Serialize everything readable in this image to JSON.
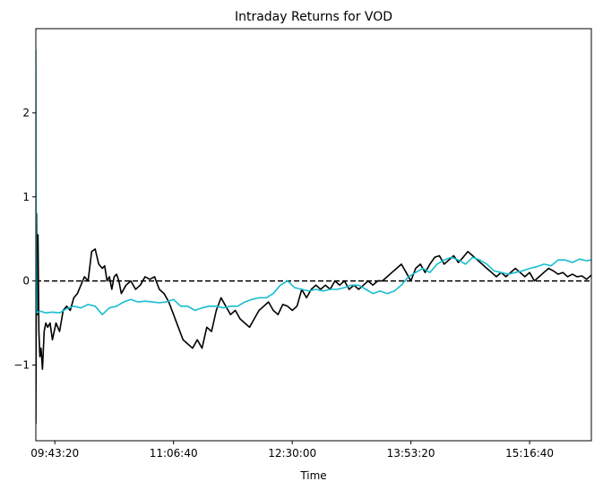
{
  "chart_data": {
    "type": "line",
    "title": "Intraday Returns for VOD",
    "xlabel": "Time",
    "ylabel": "",
    "x_ticks": [
      "09:43:20",
      "11:06:40",
      "12:30:00",
      "13:53:20",
      "15:16:40"
    ],
    "x_tick_seconds": [
      35000,
      40000,
      45000,
      50000,
      55000
    ],
    "xlim_seconds": [
      34200,
      57600
    ],
    "ylim": [
      -1.9,
      3.0
    ],
    "y_ticks": [
      -1,
      0,
      1,
      2
    ],
    "grid": false,
    "reference_line": {
      "y": 0,
      "style": "dashed",
      "color": "#000000"
    },
    "series": [
      {
        "color": "#000000",
        "x_seconds": [
          34200,
          34230,
          34260,
          34290,
          34330,
          34370,
          34420,
          34480,
          34550,
          34620,
          34700,
          34800,
          34900,
          35050,
          35200,
          35350,
          35500,
          35650,
          35800,
          35950,
          36100,
          36250,
          36400,
          36550,
          36700,
          36850,
          37000,
          37100,
          37200,
          37300,
          37400,
          37500,
          37600,
          37700,
          37800,
          38000,
          38200,
          38400,
          38600,
          38800,
          39000,
          39200,
          39400,
          39600,
          39800,
          40000,
          40200,
          40400,
          40600,
          40800,
          41000,
          41200,
          41400,
          41600,
          41800,
          42000,
          42200,
          42400,
          42600,
          42800,
          43000,
          43200,
          43400,
          43600,
          43800,
          44000,
          44200,
          44400,
          44600,
          44800,
          45000,
          45200,
          45400,
          45600,
          45800,
          46000,
          46200,
          46400,
          46600,
          46800,
          47000,
          47200,
          47400,
          47600,
          47800,
          48000,
          48200,
          48400,
          48600,
          48800,
          49000,
          49200,
          49400,
          49600,
          49800,
          50000,
          50200,
          50400,
          50600,
          50800,
          51000,
          51200,
          51400,
          51600,
          51800,
          52000,
          52200,
          52400,
          52600,
          52800,
          53000,
          53200,
          53400,
          53600,
          53800,
          54000,
          54200,
          54400,
          54600,
          54800,
          55000,
          55200,
          55400,
          55600,
          55800,
          56000,
          56200,
          56400,
          56600,
          56800,
          57000,
          57200,
          57400,
          57600
        ],
        "values": [
          -1.7,
          0.8,
          -0.4,
          0.55,
          -0.6,
          -0.9,
          -0.8,
          -1.05,
          -0.6,
          -0.5,
          -0.55,
          -0.5,
          -0.7,
          -0.5,
          -0.6,
          -0.35,
          -0.3,
          -0.35,
          -0.2,
          -0.15,
          -0.05,
          0.05,
          0.0,
          0.35,
          0.38,
          0.2,
          0.15,
          0.18,
          0.0,
          0.05,
          -0.1,
          0.05,
          0.08,
          0.0,
          -0.15,
          -0.05,
          0.0,
          -0.1,
          -0.05,
          0.05,
          0.02,
          0.05,
          -0.1,
          -0.15,
          -0.25,
          -0.4,
          -0.55,
          -0.7,
          -0.75,
          -0.8,
          -0.7,
          -0.8,
          -0.55,
          -0.6,
          -0.35,
          -0.2,
          -0.3,
          -0.4,
          -0.35,
          -0.45,
          -0.5,
          -0.55,
          -0.45,
          -0.35,
          -0.3,
          -0.25,
          -0.35,
          -0.4,
          -0.28,
          -0.3,
          -0.35,
          -0.3,
          -0.1,
          -0.2,
          -0.1,
          -0.05,
          -0.1,
          -0.05,
          -0.1,
          0.0,
          -0.05,
          0.0,
          -0.1,
          -0.05,
          -0.1,
          -0.05,
          0.0,
          -0.05,
          0.0,
          0.0,
          0.05,
          0.1,
          0.15,
          0.2,
          0.1,
          0.0,
          0.15,
          0.2,
          0.1,
          0.2,
          0.28,
          0.3,
          0.2,
          0.25,
          0.3,
          0.22,
          0.28,
          0.35,
          0.3,
          0.25,
          0.2,
          0.15,
          0.1,
          0.05,
          0.1,
          0.05,
          0.1,
          0.15,
          0.1,
          0.05,
          0.1,
          0.0,
          0.05,
          0.1,
          0.15,
          0.12,
          0.08,
          0.1,
          0.05,
          0.08,
          0.05,
          0.06,
          0.02,
          0.07
        ]
      },
      {
        "color": "#17becf",
        "x_seconds": [
          34200,
          34215,
          34240,
          34300,
          34400,
          34600,
          34900,
          35200,
          35500,
          35800,
          36100,
          36400,
          36700,
          37000,
          37300,
          37600,
          37900,
          38200,
          38500,
          38800,
          39100,
          39400,
          39700,
          40000,
          40300,
          40600,
          40900,
          41200,
          41500,
          41800,
          42100,
          42400,
          42700,
          43000,
          43300,
          43600,
          43900,
          44200,
          44500,
          44800,
          45100,
          45400,
          45700,
          46000,
          46300,
          46600,
          46900,
          47200,
          47500,
          47800,
          48100,
          48400,
          48700,
          49000,
          49300,
          49600,
          49900,
          50200,
          50500,
          50800,
          51100,
          51400,
          51700,
          52000,
          52300,
          52600,
          52900,
          53200,
          53500,
          53800,
          54100,
          54400,
          54700,
          55000,
          55300,
          55600,
          55900,
          56200,
          56500,
          56800,
          57100,
          57400,
          57600
        ],
        "values": [
          2.75,
          0.4,
          -0.38,
          -0.37,
          -0.36,
          -0.38,
          -0.37,
          -0.38,
          -0.33,
          -0.3,
          -0.32,
          -0.28,
          -0.3,
          -0.4,
          -0.32,
          -0.3,
          -0.25,
          -0.22,
          -0.25,
          -0.24,
          -0.25,
          -0.26,
          -0.25,
          -0.22,
          -0.3,
          -0.3,
          -0.35,
          -0.32,
          -0.3,
          -0.3,
          -0.32,
          -0.3,
          -0.3,
          -0.25,
          -0.22,
          -0.2,
          -0.2,
          -0.15,
          -0.05,
          0.0,
          -0.08,
          -0.1,
          -0.12,
          -0.1,
          -0.12,
          -0.1,
          -0.1,
          -0.08,
          -0.05,
          -0.05,
          -0.1,
          -0.15,
          -0.12,
          -0.15,
          -0.12,
          -0.05,
          0.05,
          0.1,
          0.15,
          0.1,
          0.2,
          0.25,
          0.28,
          0.25,
          0.2,
          0.28,
          0.25,
          0.2,
          0.12,
          0.1,
          0.08,
          0.1,
          0.12,
          0.15,
          0.17,
          0.2,
          0.18,
          0.25,
          0.25,
          0.22,
          0.26,
          0.24,
          0.25
        ]
      }
    ]
  }
}
